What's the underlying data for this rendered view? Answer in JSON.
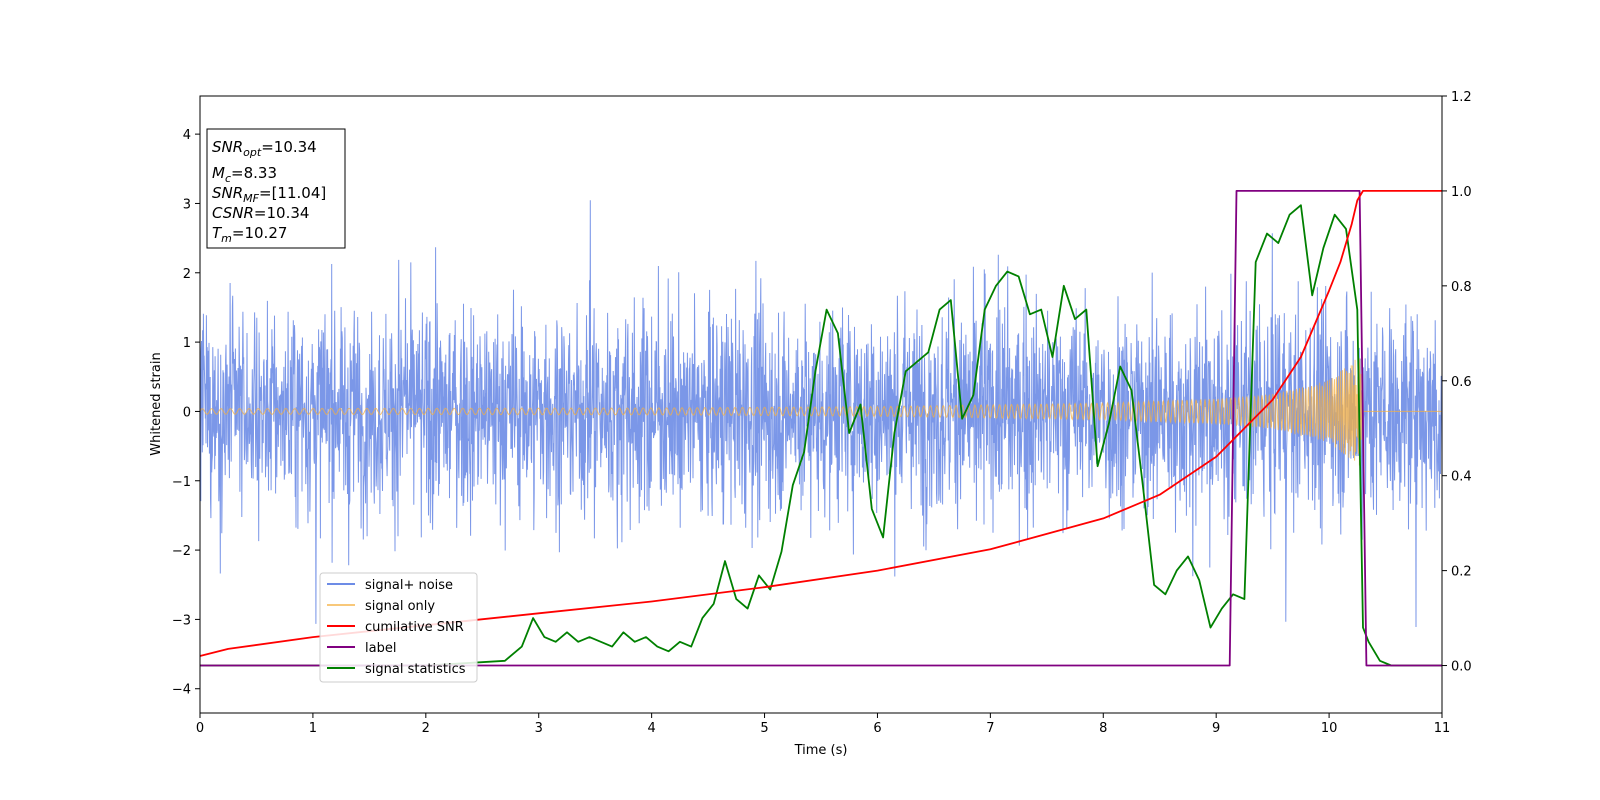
{
  "chart_data": {
    "type": "line",
    "title": "",
    "xlabel": "Time (s)",
    "ylabel": "Whitened strain",
    "xlim": [
      0,
      11
    ],
    "ylim": [
      -4.35,
      4.55
    ],
    "y2lim": [
      -0.1,
      1.2
    ],
    "xticks": [
      "0",
      "1",
      "2",
      "3",
      "4",
      "5",
      "6",
      "7",
      "8",
      "9",
      "10",
      "11"
    ],
    "yticks": [
      "−4",
      "−3",
      "−2",
      "−1",
      "0",
      "1",
      "2",
      "3",
      "4"
    ],
    "y2ticks": [
      "0.0",
      "0.2",
      "0.4",
      "0.6",
      "0.8",
      "1.0",
      "1.2"
    ],
    "grid": false,
    "legend_position": "lower-left",
    "info_box": {
      "line1_base": "SNR",
      "line1_sub": "opt",
      "line1_val": "=10.34",
      "line2_base": "M",
      "line2_sub": "c",
      "line2_val": "=8.33",
      "line3_base": "SNR",
      "line3_sub": "MF",
      "line3_val": "=[11.04]",
      "line4_base": "CSNR",
      "line4_val": "=10.34",
      "line5_base": "T",
      "line5_sub": "m",
      "line5_val": "=10.27"
    },
    "series": [
      {
        "name": "signal+ noise",
        "color": "#6d8ce6",
        "axis": "left",
        "kind": "noise",
        "std": 0.85,
        "envelope": [
          -3.25,
          4.2
        ]
      },
      {
        "name": "signal only",
        "color": "#f5b041",
        "axis": "left",
        "kind": "chirp",
        "merger_time": 10.27,
        "amplitude_envelope": {
          "x": [
            0,
            4,
            6,
            8,
            9,
            9.5,
            10,
            10.2,
            10.27,
            10.3,
            11
          ],
          "y": [
            0.04,
            0.05,
            0.07,
            0.12,
            0.18,
            0.25,
            0.45,
            0.7,
            0.85,
            0,
            0
          ]
        }
      },
      {
        "name": "cumilative SNR",
        "color": "#ff0000",
        "axis": "right",
        "x": [
          0,
          0.25,
          1,
          2,
          3,
          4,
          5,
          6,
          7,
          8,
          8.5,
          9,
          9.5,
          9.75,
          10,
          10.1,
          10.2,
          10.25,
          10.3,
          11
        ],
        "y": [
          0.02,
          0.035,
          0.06,
          0.085,
          0.11,
          0.135,
          0.165,
          0.2,
          0.245,
          0.31,
          0.36,
          0.44,
          0.56,
          0.65,
          0.79,
          0.85,
          0.93,
          0.98,
          1.0,
          1.0
        ]
      },
      {
        "name": "label",
        "color": "#800080",
        "axis": "right",
        "x": [
          0,
          9.12,
          9.18,
          10.27,
          10.33,
          11
        ],
        "y": [
          0,
          0,
          1,
          1,
          0,
          0
        ]
      },
      {
        "name": "signal statistics",
        "color": "#008000",
        "axis": "right",
        "x": [
          0,
          0.5,
          1,
          2,
          2.7,
          2.85,
          2.95,
          3.05,
          3.15,
          3.25,
          3.35,
          3.45,
          3.55,
          3.65,
          3.75,
          3.85,
          3.95,
          4.05,
          4.15,
          4.25,
          4.35,
          4.45,
          4.55,
          4.65,
          4.75,
          4.85,
          4.95,
          5.05,
          5.15,
          5.25,
          5.35,
          5.45,
          5.55,
          5.65,
          5.75,
          5.85,
          5.95,
          6.05,
          6.15,
          6.25,
          6.35,
          6.45,
          6.55,
          6.65,
          6.75,
          6.85,
          6.95,
          7.05,
          7.15,
          7.25,
          7.35,
          7.45,
          7.55,
          7.65,
          7.75,
          7.85,
          7.95,
          8.05,
          8.15,
          8.25,
          8.35,
          8.45,
          8.55,
          8.65,
          8.75,
          8.85,
          8.95,
          9.05,
          9.15,
          9.25,
          9.35,
          9.45,
          9.55,
          9.65,
          9.75,
          9.85,
          9.95,
          10.05,
          10.15,
          10.25,
          10.3,
          10.35,
          10.45,
          10.55,
          11
        ],
        "y": [
          0,
          0.0,
          0.0,
          0.0,
          0.01,
          0.04,
          0.1,
          0.06,
          0.05,
          0.07,
          0.05,
          0.06,
          0.05,
          0.04,
          0.07,
          0.05,
          0.06,
          0.04,
          0.03,
          0.05,
          0.04,
          0.1,
          0.13,
          0.22,
          0.14,
          0.12,
          0.19,
          0.16,
          0.24,
          0.38,
          0.45,
          0.62,
          0.75,
          0.7,
          0.49,
          0.55,
          0.33,
          0.27,
          0.49,
          0.62,
          0.64,
          0.66,
          0.75,
          0.77,
          0.52,
          0.57,
          0.75,
          0.8,
          0.83,
          0.82,
          0.74,
          0.75,
          0.65,
          0.8,
          0.73,
          0.75,
          0.42,
          0.51,
          0.63,
          0.58,
          0.38,
          0.17,
          0.15,
          0.2,
          0.23,
          0.18,
          0.08,
          0.12,
          0.15,
          0.14,
          0.85,
          0.91,
          0.89,
          0.95,
          0.97,
          0.78,
          0.88,
          0.95,
          0.92,
          0.75,
          0.08,
          0.05,
          0.01,
          0.0,
          0.0
        ]
      }
    ]
  }
}
